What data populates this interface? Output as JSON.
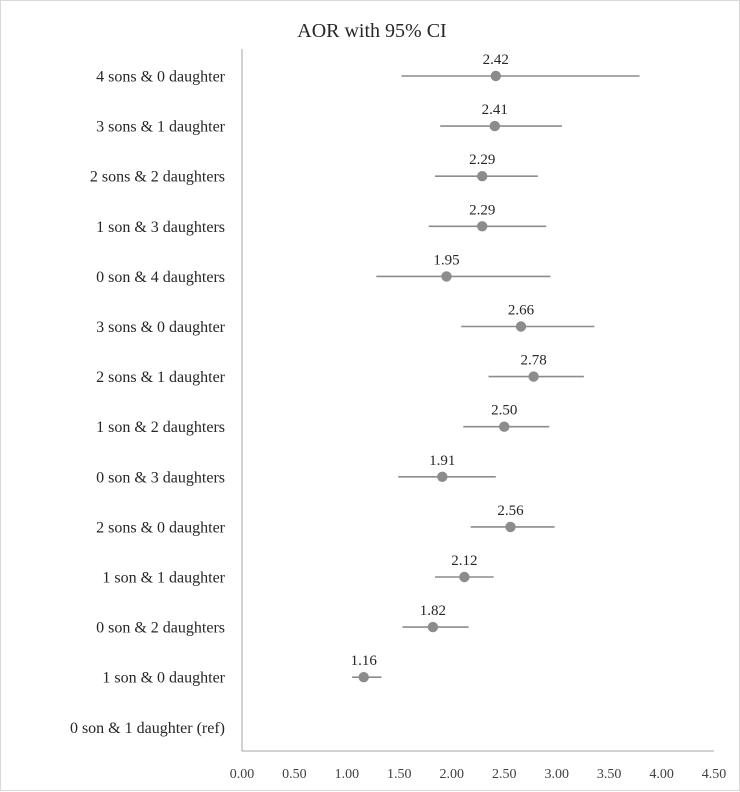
{
  "chart_data": {
    "type": "scatter",
    "title": "AOR with 95% CI",
    "xlabel": "",
    "ylabel": "",
    "xlim": [
      0,
      4.5
    ],
    "x_ticks": [
      "0.00",
      "0.50",
      "1.00",
      "1.50",
      "2.00",
      "2.50",
      "3.00",
      "3.50",
      "4.00",
      "4.50"
    ],
    "grid": false,
    "legend": "none",
    "marker_color": "#8c8c8c",
    "categories": [
      "4 sons & 0 daughter",
      "3 sons & 1 daughter",
      "2 sons & 2 daughters",
      "1 son & 3 daughters",
      "0 son & 4 daughters",
      "3 sons & 0 daughter",
      "2 sons & 1 daughter",
      "1 son & 2 daughters",
      "0 son & 3 daughters",
      "2 sons & 0 daughter",
      "1 son & 1 daughter",
      "0 son & 2 daughters",
      "1 son & 0 daughter",
      "0 son & 1 daughter (ref)"
    ],
    "aor": [
      2.42,
      2.41,
      2.29,
      2.29,
      1.95,
      2.66,
      2.78,
      2.5,
      1.91,
      2.56,
      2.12,
      1.82,
      1.16,
      null
    ],
    "aor_labels": [
      "2.42",
      "2.41",
      "2.29",
      "2.29",
      "1.95",
      "2.66",
      "2.78",
      "2.50",
      "1.91",
      "2.56",
      "2.12",
      "1.82",
      "1.16",
      ""
    ],
    "ci_lower": [
      1.52,
      1.89,
      1.84,
      1.78,
      1.28,
      2.09,
      2.35,
      2.11,
      1.49,
      2.18,
      1.84,
      1.53,
      1.05,
      null
    ],
    "ci_upper": [
      3.79,
      3.05,
      2.82,
      2.9,
      2.94,
      3.36,
      3.26,
      2.93,
      2.42,
      2.98,
      2.4,
      2.16,
      1.33,
      null
    ]
  }
}
